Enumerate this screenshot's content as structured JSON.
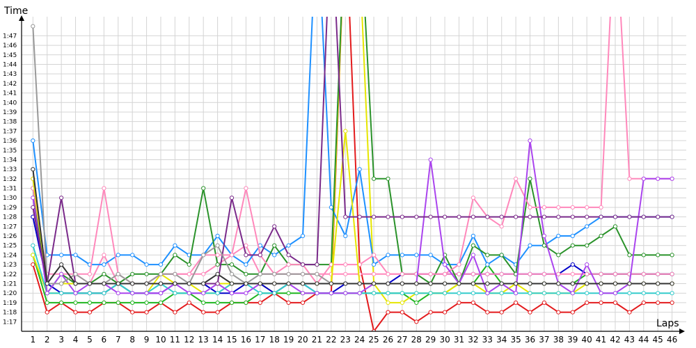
{
  "chart_data": {
    "type": "line",
    "title": "",
    "xlabel": "Laps",
    "ylabel": "Time",
    "x_ticks": [
      "1",
      "2",
      "3",
      "4",
      "5",
      "6",
      "7",
      "8",
      "9",
      "10",
      "11",
      "12",
      "13",
      "14",
      "15",
      "16",
      "17",
      "18",
      "19",
      "20",
      "21",
      "22",
      "23",
      "24",
      "25",
      "26",
      "27",
      "28",
      "29",
      "30",
      "31",
      "32",
      "33",
      "34",
      "35",
      "36",
      "37",
      "38",
      "39",
      "40",
      "41",
      "42",
      "43",
      "44",
      "45",
      "46"
    ],
    "y_ticks": [
      "1:17",
      "1:18",
      "1:19",
      "1:20",
      "1:21",
      "1:22",
      "1:23",
      "1:24",
      "1:25",
      "1:26",
      "1:27",
      "1:28",
      "1:29",
      "1:30",
      "1:31",
      "1:32",
      "1:33",
      "1:34",
      "1:35",
      "1:36",
      "1:37",
      "1:38",
      "1:39",
      "1:40",
      "1:41",
      "1:42",
      "1:43",
      "1:44",
      "1:45",
      "1:46",
      "1:47"
    ],
    "xlim": [
      0.2,
      47
    ],
    "ylim_seconds": [
      76,
      109
    ],
    "grid": true,
    "series": [
      {
        "color": "#e31a1c",
        "values": [
          83,
          78,
          79,
          78,
          78,
          79,
          79,
          78,
          78,
          79,
          78,
          79,
          78,
          78,
          79,
          79,
          79,
          80,
          79,
          79,
          80,
          80,
          120,
          83,
          76,
          78,
          78,
          77,
          78,
          78,
          79,
          79,
          78,
          78,
          79,
          78,
          79,
          78,
          78,
          79,
          79,
          79,
          78,
          79,
          79,
          79
        ]
      },
      {
        "color": "#1fb51f",
        "values": [
          84,
          79,
          79,
          79,
          79,
          79,
          79,
          79,
          79,
          79,
          80,
          80,
          79,
          79,
          79,
          79,
          80,
          80,
          80,
          80,
          80,
          80,
          80,
          80,
          80,
          80,
          80,
          79,
          80,
          80,
          81,
          81,
          83,
          81,
          81,
          81,
          81,
          81,
          81,
          82,
          82,
          82,
          82,
          82,
          82,
          82
        ]
      },
      {
        "color": "#e6e600",
        "values": [
          84,
          80,
          80,
          80,
          80,
          80,
          81,
          80,
          80,
          82,
          81,
          81,
          80,
          80,
          81,
          81,
          81,
          80,
          81,
          81,
          81,
          81,
          120,
          115,
          81,
          79,
          79,
          80,
          80,
          80,
          81,
          81,
          80,
          80,
          81,
          80,
          80,
          80,
          80,
          81,
          81,
          81,
          81,
          81,
          81,
          81
        ]
      },
      {
        "color": "#0000c8",
        "values": [
          88,
          81,
          80,
          80,
          80,
          80,
          81,
          80,
          80,
          80,
          81,
          81,
          81,
          80,
          80,
          81,
          81,
          80,
          81,
          81,
          80,
          80,
          81,
          81,
          81,
          81,
          82,
          82,
          82,
          82,
          82,
          82,
          82,
          82,
          82,
          82,
          82,
          82,
          83,
          82,
          82,
          82,
          82,
          82,
          82,
          82
        ]
      },
      {
        "color": "#33cccc",
        "values": [
          85,
          80,
          80,
          80,
          80,
          80,
          81,
          80,
          80,
          81,
          80,
          80,
          80,
          80,
          81,
          81,
          80,
          80,
          81,
          81,
          80,
          80,
          80,
          80,
          80,
          80,
          80,
          80,
          80,
          80,
          80,
          80,
          80,
          80,
          80,
          80,
          80,
          80,
          80,
          80,
          80,
          80,
          80,
          80,
          80,
          80
        ]
      },
      {
        "color": "#ff88bb",
        "values": [
          92,
          81,
          81,
          82,
          81,
          84,
          81,
          81,
          81,
          82,
          82,
          82,
          82,
          83,
          84,
          85,
          82,
          82,
          82,
          82,
          82,
          82,
          82,
          82,
          82,
          82,
          82,
          82,
          82,
          82,
          82,
          82,
          82,
          82,
          82,
          82,
          82,
          82,
          82,
          82,
          82,
          82,
          82,
          82,
          82,
          82
        ]
      },
      {
        "color": "#1e90ff",
        "values": [
          96,
          84,
          84,
          84,
          83,
          83,
          84,
          84,
          83,
          83,
          85,
          84,
          84,
          86,
          84,
          83,
          85,
          84,
          85,
          86,
          120,
          89,
          86,
          93,
          83,
          84,
          84,
          84,
          84,
          83,
          83,
          86,
          83,
          84,
          83,
          85,
          85,
          86,
          86,
          87,
          88,
          88,
          88,
          88,
          88,
          88
        ]
      },
      {
        "color": "#2a922a",
        "values": [
          91,
          80,
          82,
          81,
          81,
          82,
          81,
          82,
          82,
          82,
          84,
          83,
          91,
          83,
          83,
          82,
          82,
          85,
          83,
          83,
          83,
          83,
          120,
          120,
          92,
          92,
          82,
          82,
          81,
          84,
          81,
          85,
          84,
          84,
          82,
          92,
          85,
          84,
          85,
          85,
          86,
          87,
          84,
          84,
          84,
          84
        ]
      },
      {
        "color": "#ff88bb",
        "values": [
          91,
          82,
          82,
          82,
          82,
          91,
          82,
          81,
          81,
          82,
          82,
          82,
          84,
          84,
          84,
          91,
          84,
          82,
          83,
          83,
          81,
          83,
          83,
          83,
          84,
          82,
          82,
          82,
          82,
          82,
          83,
          90,
          88,
          87,
          92,
          89,
          89,
          89,
          89,
          89,
          89,
          120,
          92,
          92,
          92,
          92
        ]
      },
      {
        "color": "#aa44ee",
        "values": [
          90,
          80,
          82,
          80,
          81,
          81,
          80,
          80,
          80,
          80,
          81,
          80,
          80,
          81,
          80,
          80,
          81,
          81,
          81,
          80,
          80,
          80,
          80,
          80,
          81,
          81,
          81,
          81,
          94,
          83,
          81,
          84,
          80,
          81,
          80,
          96,
          86,
          81,
          80,
          83,
          80,
          80,
          81,
          92,
          92,
          92
        ]
      },
      {
        "color": "#e6e600",
        "values": [
          92,
          81,
          81,
          81,
          81,
          81,
          81,
          81,
          81,
          81,
          81,
          81,
          81,
          81,
          81,
          81,
          81,
          81,
          81,
          81,
          81,
          81,
          97,
          81,
          81,
          81,
          81,
          81,
          81,
          81,
          81,
          81,
          81,
          81,
          81,
          81,
          81,
          81,
          81,
          81,
          81,
          81,
          81,
          81,
          81,
          81
        ]
      },
      {
        "color": "#7a2a8a",
        "values": [
          89,
          81,
          90,
          81,
          81,
          81,
          81,
          81,
          81,
          81,
          81,
          81,
          81,
          81,
          90,
          84,
          84,
          87,
          84,
          83,
          83,
          120,
          88,
          88,
          88,
          88,
          88,
          88,
          88,
          88,
          88,
          88,
          88,
          88,
          88,
          88,
          88,
          88,
          88,
          88,
          88,
          88,
          88,
          88,
          88,
          88
        ]
      },
      {
        "color": "#999999",
        "values": [
          108,
          81,
          81,
          82,
          81,
          81,
          82,
          81,
          81,
          82,
          82,
          81,
          84,
          85,
          82,
          81,
          82,
          82,
          82,
          82,
          82,
          81,
          81,
          81,
          81,
          81,
          81,
          81,
          81,
          81,
          81,
          81,
          81,
          81,
          81,
          81,
          81,
          81,
          81,
          81,
          81,
          81,
          81,
          81,
          81,
          81
        ]
      },
      {
        "color": "#333333",
        "values": [
          93,
          81,
          83,
          81,
          81,
          81,
          81,
          81,
          81,
          81,
          81,
          81,
          81,
          82,
          81,
          81,
          81,
          81,
          81,
          81,
          81,
          81,
          81,
          81,
          81,
          81,
          81,
          81,
          81,
          81,
          81,
          81,
          81,
          81,
          81,
          81,
          81,
          81,
          81,
          81,
          81,
          81,
          81,
          81,
          81,
          81
        ]
      }
    ]
  }
}
